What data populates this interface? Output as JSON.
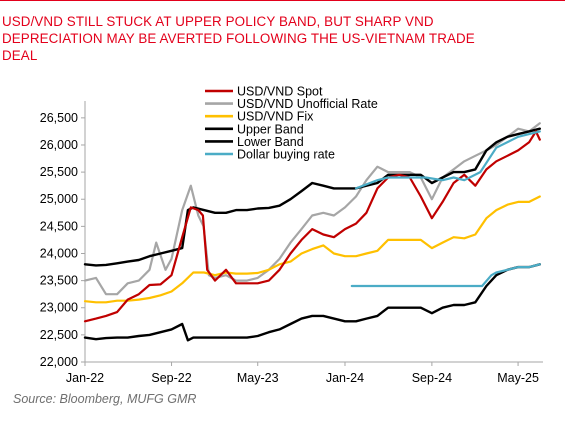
{
  "title_lines": [
    "USD/VND STILL STUCK AT UPPER POLICY BAND, BUT SHARP VND",
    "DEPRECIATION MAY BE AVERTED FOLLOWING THE US-VIETNAM TRADE",
    "DEAL"
  ],
  "source": "Source: Bloomberg, MUFG GMR",
  "colors": {
    "accent": "#e3001b",
    "spot": "#c00000",
    "unofficial": "#a6a6a6",
    "fix": "#ffc000",
    "upper": "#000000",
    "lower": "#000000",
    "dollar_buying": "#4bacc6",
    "axis": "#a6a6a6"
  },
  "chart_data": {
    "type": "line",
    "title": "USD/VND STILL STUCK AT UPPER POLICY BAND, BUT SHARP VND DEPRECIATION MAY BE AVERTED FOLLOWING THE US-VIETNAM TRADE DEAL",
    "xlabel": "",
    "ylabel": "",
    "x_range": [
      "2022-01-01",
      "2025-07-10"
    ],
    "ylim": [
      22000,
      26700
    ],
    "y_ticks": [
      22000,
      22500,
      23000,
      23500,
      24000,
      24500,
      25000,
      25500,
      26000,
      26500
    ],
    "y_tick_labels": [
      "22,000",
      "22,500",
      "23,000",
      "23,500",
      "24,000",
      "24,500",
      "25,000",
      "25,500",
      "26,000",
      "26,500"
    ],
    "x_ticks": [
      "2022-01-01",
      "2022-09-01",
      "2023-05-01",
      "2024-01-01",
      "2024-09-01",
      "2025-05-01"
    ],
    "x_tick_labels": [
      "Jan-22",
      "Sep-22",
      "May-23",
      "Jan-24",
      "Sep-24",
      "May-25"
    ],
    "grid": false,
    "legend_position": "top-center",
    "series": [
      {
        "name": "USD/VND Spot",
        "color": "#c00000",
        "points": [
          [
            "2022-01-01",
            22750
          ],
          [
            "2022-02-01",
            22800
          ],
          [
            "2022-03-01",
            22850
          ],
          [
            "2022-04-01",
            22920
          ],
          [
            "2022-05-01",
            23150
          ],
          [
            "2022-06-01",
            23250
          ],
          [
            "2022-07-01",
            23420
          ],
          [
            "2022-08-01",
            23430
          ],
          [
            "2022-09-01",
            23600
          ],
          [
            "2022-10-01",
            24300
          ],
          [
            "2022-10-25",
            24850
          ],
          [
            "2022-11-15",
            24800
          ],
          [
            "2022-11-28",
            24700
          ],
          [
            "2022-12-10",
            23700
          ],
          [
            "2023-01-01",
            23500
          ],
          [
            "2023-02-01",
            23700
          ],
          [
            "2023-03-01",
            23450
          ],
          [
            "2023-04-01",
            23450
          ],
          [
            "2023-05-01",
            23450
          ],
          [
            "2023-06-01",
            23500
          ],
          [
            "2023-07-01",
            23700
          ],
          [
            "2023-08-01",
            24000
          ],
          [
            "2023-09-01",
            24250
          ],
          [
            "2023-10-01",
            24450
          ],
          [
            "2023-11-01",
            24350
          ],
          [
            "2023-12-01",
            24300
          ],
          [
            "2024-01-01",
            24450
          ],
          [
            "2024-02-01",
            24550
          ],
          [
            "2024-03-01",
            24750
          ],
          [
            "2024-04-01",
            25200
          ],
          [
            "2024-05-01",
            25400
          ],
          [
            "2024-06-01",
            25450
          ],
          [
            "2024-07-01",
            25400
          ],
          [
            "2024-08-01",
            25050
          ],
          [
            "2024-09-01",
            24650
          ],
          [
            "2024-10-01",
            24950
          ],
          [
            "2024-11-01",
            25300
          ],
          [
            "2024-12-01",
            25450
          ],
          [
            "2025-01-01",
            25250
          ],
          [
            "2025-02-01",
            25550
          ],
          [
            "2025-03-01",
            25700
          ],
          [
            "2025-04-01",
            25800
          ],
          [
            "2025-05-01",
            25900
          ],
          [
            "2025-06-01",
            26050
          ],
          [
            "2025-06-20",
            26250
          ],
          [
            "2025-07-01",
            26100
          ]
        ]
      },
      {
        "name": "USD/VND Unofficial Rate",
        "color": "#a6a6a6",
        "points": [
          [
            "2022-01-01",
            23500
          ],
          [
            "2022-02-01",
            23550
          ],
          [
            "2022-03-01",
            23250
          ],
          [
            "2022-04-01",
            23250
          ],
          [
            "2022-05-01",
            23450
          ],
          [
            "2022-06-01",
            23500
          ],
          [
            "2022-07-01",
            23700
          ],
          [
            "2022-07-20",
            24200
          ],
          [
            "2022-08-15",
            23700
          ],
          [
            "2022-09-01",
            23900
          ],
          [
            "2022-10-01",
            24800
          ],
          [
            "2022-10-25",
            25250
          ],
          [
            "2022-11-15",
            24700
          ],
          [
            "2022-11-30",
            24500
          ],
          [
            "2022-12-15",
            23600
          ],
          [
            "2023-01-01",
            23550
          ],
          [
            "2023-02-01",
            23600
          ],
          [
            "2023-03-01",
            23500
          ],
          [
            "2023-04-01",
            23500
          ],
          [
            "2023-05-01",
            23550
          ],
          [
            "2023-06-01",
            23700
          ],
          [
            "2023-07-01",
            23900
          ],
          [
            "2023-08-01",
            24200
          ],
          [
            "2023-09-01",
            24450
          ],
          [
            "2023-10-01",
            24700
          ],
          [
            "2023-11-01",
            24750
          ],
          [
            "2023-12-01",
            24700
          ],
          [
            "2024-01-01",
            24850
          ],
          [
            "2024-02-01",
            25050
          ],
          [
            "2024-03-01",
            25350
          ],
          [
            "2024-04-01",
            25600
          ],
          [
            "2024-05-01",
            25500
          ],
          [
            "2024-06-01",
            25500
          ],
          [
            "2024-07-01",
            25500
          ],
          [
            "2024-08-01",
            25400
          ],
          [
            "2024-09-01",
            25000
          ],
          [
            "2024-10-01",
            25400
          ],
          [
            "2024-11-01",
            25550
          ],
          [
            "2024-12-01",
            25700
          ],
          [
            "2025-01-01",
            25800
          ],
          [
            "2025-02-01",
            25900
          ],
          [
            "2025-03-01",
            26000
          ],
          [
            "2025-04-01",
            26150
          ],
          [
            "2025-05-01",
            26300
          ],
          [
            "2025-06-01",
            26250
          ],
          [
            "2025-07-01",
            26400
          ]
        ]
      },
      {
        "name": "USD/VND Fix",
        "color": "#ffc000",
        "points": [
          [
            "2022-01-01",
            23120
          ],
          [
            "2022-02-01",
            23100
          ],
          [
            "2022-03-01",
            23100
          ],
          [
            "2022-04-01",
            23130
          ],
          [
            "2022-05-01",
            23130
          ],
          [
            "2022-06-01",
            23150
          ],
          [
            "2022-07-01",
            23180
          ],
          [
            "2022-08-01",
            23230
          ],
          [
            "2022-09-01",
            23300
          ],
          [
            "2022-10-01",
            23450
          ],
          [
            "2022-11-01",
            23650
          ],
          [
            "2022-12-01",
            23650
          ],
          [
            "2023-01-01",
            23600
          ],
          [
            "2023-02-01",
            23650
          ],
          [
            "2023-03-01",
            23630
          ],
          [
            "2023-04-01",
            23630
          ],
          [
            "2023-05-01",
            23640
          ],
          [
            "2023-06-01",
            23700
          ],
          [
            "2023-07-01",
            23800
          ],
          [
            "2023-08-01",
            23850
          ],
          [
            "2023-09-01",
            24000
          ],
          [
            "2023-10-01",
            24080
          ],
          [
            "2023-11-01",
            24150
          ],
          [
            "2023-12-01",
            24000
          ],
          [
            "2024-01-01",
            23950
          ],
          [
            "2024-02-01",
            23950
          ],
          [
            "2024-03-01",
            24000
          ],
          [
            "2024-04-01",
            24050
          ],
          [
            "2024-05-01",
            24250
          ],
          [
            "2024-06-01",
            24250
          ],
          [
            "2024-07-01",
            24250
          ],
          [
            "2024-08-01",
            24250
          ],
          [
            "2024-09-01",
            24100
          ],
          [
            "2024-10-01",
            24200
          ],
          [
            "2024-11-01",
            24300
          ],
          [
            "2024-12-01",
            24280
          ],
          [
            "2025-01-01",
            24350
          ],
          [
            "2025-02-01",
            24650
          ],
          [
            "2025-03-01",
            24800
          ],
          [
            "2025-04-01",
            24900
          ],
          [
            "2025-05-01",
            24950
          ],
          [
            "2025-06-01",
            24950
          ],
          [
            "2025-07-01",
            25050
          ]
        ]
      },
      {
        "name": "Upper Band",
        "color": "#000000",
        "points": [
          [
            "2022-01-01",
            23800
          ],
          [
            "2022-02-01",
            23780
          ],
          [
            "2022-03-01",
            23790
          ],
          [
            "2022-04-01",
            23820
          ],
          [
            "2022-05-01",
            23850
          ],
          [
            "2022-06-01",
            23880
          ],
          [
            "2022-07-01",
            23950
          ],
          [
            "2022-08-01",
            24000
          ],
          [
            "2022-09-01",
            24050
          ],
          [
            "2022-10-01",
            24100
          ],
          [
            "2022-10-17",
            24800
          ],
          [
            "2022-11-01",
            24850
          ],
          [
            "2022-12-01",
            24800
          ],
          [
            "2023-01-01",
            24750
          ],
          [
            "2023-02-01",
            24750
          ],
          [
            "2023-03-01",
            24800
          ],
          [
            "2023-04-01",
            24800
          ],
          [
            "2023-05-01",
            24830
          ],
          [
            "2023-06-01",
            24840
          ],
          [
            "2023-07-01",
            24880
          ],
          [
            "2023-08-01",
            25000
          ],
          [
            "2023-09-01",
            25150
          ],
          [
            "2023-10-01",
            25300
          ],
          [
            "2023-11-01",
            25250
          ],
          [
            "2023-12-01",
            25200
          ],
          [
            "2024-01-01",
            25200
          ],
          [
            "2024-02-01",
            25200
          ],
          [
            "2024-03-01",
            25250
          ],
          [
            "2024-04-01",
            25300
          ],
          [
            "2024-05-01",
            25450
          ],
          [
            "2024-06-01",
            25450
          ],
          [
            "2024-07-01",
            25450
          ],
          [
            "2024-08-01",
            25450
          ],
          [
            "2024-09-01",
            25300
          ],
          [
            "2024-10-01",
            25400
          ],
          [
            "2024-11-01",
            25500
          ],
          [
            "2024-12-01",
            25500
          ],
          [
            "2025-01-01",
            25550
          ],
          [
            "2025-02-01",
            25900
          ],
          [
            "2025-03-01",
            26050
          ],
          [
            "2025-04-01",
            26150
          ],
          [
            "2025-05-01",
            26200
          ],
          [
            "2025-06-01",
            26250
          ],
          [
            "2025-07-01",
            26300
          ]
        ]
      },
      {
        "name": "Lower Band",
        "color": "#000000",
        "points": [
          [
            "2022-01-01",
            22450
          ],
          [
            "2022-02-01",
            22420
          ],
          [
            "2022-03-01",
            22440
          ],
          [
            "2022-04-01",
            22450
          ],
          [
            "2022-05-01",
            22450
          ],
          [
            "2022-06-01",
            22480
          ],
          [
            "2022-07-01",
            22500
          ],
          [
            "2022-08-01",
            22550
          ],
          [
            "2022-09-01",
            22600
          ],
          [
            "2022-10-01",
            22700
          ],
          [
            "2022-10-17",
            22400
          ],
          [
            "2022-11-01",
            22450
          ],
          [
            "2022-12-01",
            22450
          ],
          [
            "2023-01-01",
            22450
          ],
          [
            "2023-02-01",
            22450
          ],
          [
            "2023-03-01",
            22450
          ],
          [
            "2023-04-01",
            22450
          ],
          [
            "2023-05-01",
            22480
          ],
          [
            "2023-06-01",
            22550
          ],
          [
            "2023-07-01",
            22600
          ],
          [
            "2023-08-01",
            22700
          ],
          [
            "2023-09-01",
            22800
          ],
          [
            "2023-10-01",
            22850
          ],
          [
            "2023-11-01",
            22850
          ],
          [
            "2023-12-01",
            22800
          ],
          [
            "2024-01-01",
            22750
          ],
          [
            "2024-02-01",
            22750
          ],
          [
            "2024-03-01",
            22800
          ],
          [
            "2024-04-01",
            22850
          ],
          [
            "2024-05-01",
            23000
          ],
          [
            "2024-06-01",
            23000
          ],
          [
            "2024-07-01",
            23000
          ],
          [
            "2024-08-01",
            23000
          ],
          [
            "2024-09-01",
            22900
          ],
          [
            "2024-10-01",
            23000
          ],
          [
            "2024-11-01",
            23050
          ],
          [
            "2024-12-01",
            23050
          ],
          [
            "2025-01-01",
            23100
          ],
          [
            "2025-02-01",
            23400
          ],
          [
            "2025-03-01",
            23600
          ],
          [
            "2025-04-01",
            23700
          ],
          [
            "2025-05-01",
            23750
          ],
          [
            "2025-06-01",
            23750
          ],
          [
            "2025-07-01",
            23800
          ]
        ]
      },
      {
        "name": "Dollar buying rate",
        "color": "#4bacc6",
        "points": [
          [
            "2024-01-20",
            23400
          ],
          [
            "2024-12-31",
            23400
          ],
          [
            "2025-01-20",
            23400
          ],
          [
            "2025-02-15",
            23600
          ],
          [
            "2025-03-01",
            23650
          ],
          [
            "2025-04-01",
            23700
          ],
          [
            "2025-05-01",
            23750
          ],
          [
            "2025-06-01",
            23750
          ],
          [
            "2025-07-01",
            23800
          ]
        ]
      }
    ],
    "dollar_buying_rate_upper_segment": {
      "color": "#4bacc6",
      "points": [
        [
          "2024-02-01",
          25200
        ],
        [
          "2024-04-01",
          25350
        ],
        [
          "2024-05-01",
          25400
        ],
        [
          "2024-07-01",
          25400
        ],
        [
          "2024-08-15",
          25400
        ],
        [
          "2024-10-01",
          25350
        ],
        [
          "2024-11-01",
          25400
        ],
        [
          "2024-12-01",
          25350
        ],
        [
          "2025-01-15",
          25500
        ],
        [
          "2025-03-01",
          25950
        ],
        [
          "2025-05-01",
          26150
        ],
        [
          "2025-07-01",
          26250
        ]
      ]
    }
  }
}
